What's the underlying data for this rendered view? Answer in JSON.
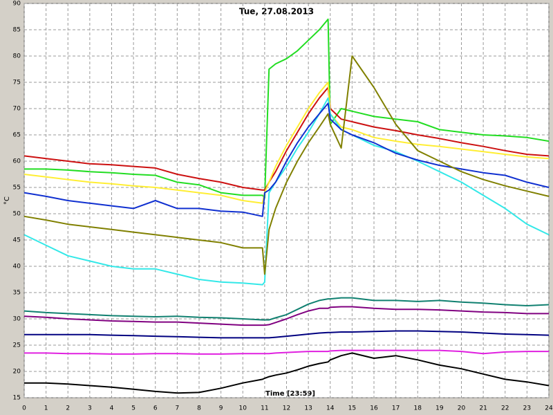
{
  "chart_data": {
    "type": "line",
    "title": "Tue, 27.08.2013",
    "x_label": "Time [23:59]",
    "y_label": "°C",
    "x": [
      0,
      1,
      2,
      3,
      4,
      5,
      6,
      7,
      8,
      9,
      10,
      10.9,
      11,
      11.2,
      11.5,
      12,
      12.5,
      13,
      13.5,
      13.9,
      14,
      14.5,
      15,
      16,
      17,
      18,
      19,
      20,
      21,
      22,
      23,
      24
    ],
    "series": [
      {
        "color": "#22dd22",
        "values": [
          58.5,
          58.5,
          58.3,
          58,
          57.8,
          57.5,
          57.3,
          56,
          55.5,
          54,
          53.5,
          53.5,
          53,
          77.5,
          78.5,
          79.5,
          81,
          83,
          85,
          87,
          67,
          70,
          69.5,
          68.5,
          68,
          67.5,
          66,
          65.5,
          65,
          64.8,
          64.5,
          63.8
        ]
      },
      {
        "color": "#cc1010",
        "values": [
          61,
          60.5,
          60,
          59.5,
          59.3,
          59,
          58.7,
          57.5,
          56.7,
          56,
          55,
          54.5,
          54.5,
          56,
          58,
          62,
          65.5,
          69,
          72,
          74,
          70,
          68,
          67.5,
          66.5,
          65.8,
          65,
          64.3,
          63.5,
          62.8,
          62,
          61.3,
          61
        ]
      },
      {
        "color": "#ffee33",
        "values": [
          57.5,
          57,
          56.5,
          56,
          55.7,
          55.3,
          55,
          54.5,
          54,
          53.5,
          52.5,
          52,
          54,
          56,
          59,
          63,
          66.5,
          70,
          73,
          75,
          69,
          66.5,
          66,
          64.5,
          63.8,
          63.2,
          62.8,
          62.3,
          61.8,
          61.3,
          60.8,
          60.5
        ]
      },
      {
        "color": "#33e8e8",
        "values": [
          46,
          44,
          42,
          41,
          40,
          39.5,
          39.5,
          38.5,
          37.5,
          37,
          36.8,
          36.5,
          37,
          54,
          56,
          59,
          62.5,
          65.5,
          69,
          72,
          69,
          66,
          65,
          63,
          61.8,
          60,
          58,
          56,
          53.5,
          51,
          48,
          46
        ]
      },
      {
        "color": "#1030d0",
        "values": [
          54,
          53.3,
          52.5,
          52,
          51.5,
          51,
          52.5,
          51,
          51,
          50.5,
          50.3,
          49.5,
          54,
          54.5,
          56,
          60,
          63.5,
          66.5,
          69,
          71,
          68,
          66,
          65,
          63.5,
          61.5,
          60.2,
          59.2,
          58.5,
          57.8,
          57.3,
          56,
          55
        ]
      },
      {
        "color": "#808000",
        "values": [
          49.5,
          48.8,
          48,
          47.5,
          47,
          46.5,
          46,
          45.5,
          45,
          44.5,
          43.5,
          43.5,
          38.5,
          47,
          51,
          56,
          60,
          63.5,
          66.5,
          69,
          67,
          62.5,
          80,
          74,
          67,
          62,
          60,
          58,
          56.5,
          55.3,
          54.3,
          53.3
        ]
      },
      {
        "color": "#108070",
        "values": [
          31.5,
          31.2,
          31,
          30.8,
          30.6,
          30.5,
          30.4,
          30.5,
          30.3,
          30.2,
          30,
          29.8,
          29.8,
          29.8,
          30.2,
          30.8,
          31.8,
          32.8,
          33.5,
          33.8,
          33.8,
          34,
          34,
          33.5,
          33.5,
          33.3,
          33.5,
          33.2,
          33,
          32.7,
          32.5,
          32.7
        ]
      },
      {
        "color": "#800080",
        "values": [
          30.5,
          30.3,
          30,
          29.8,
          29.6,
          29.5,
          29.4,
          29.4,
          29.2,
          29,
          28.8,
          28.8,
          28.8,
          28.9,
          29.3,
          30,
          30.8,
          31.5,
          32,
          32,
          32.2,
          32.3,
          32.3,
          32,
          31.8,
          31.8,
          31.7,
          31.5,
          31.3,
          31.2,
          31,
          31
        ]
      },
      {
        "color": "#000080",
        "values": [
          27,
          27,
          27,
          27,
          26.9,
          26.8,
          26.7,
          26.6,
          26.5,
          26.4,
          26.4,
          26.4,
          26.4,
          26.4,
          26.5,
          26.7,
          26.9,
          27.1,
          27.3,
          27.4,
          27.4,
          27.5,
          27.5,
          27.6,
          27.7,
          27.7,
          27.6,
          27.5,
          27.3,
          27.1,
          27,
          26.9
        ]
      },
      {
        "color": "#e020e0",
        "values": [
          23.5,
          23.5,
          23.4,
          23.4,
          23.3,
          23.3,
          23.4,
          23.4,
          23.3,
          23.3,
          23.4,
          23.4,
          23.4,
          23.4,
          23.5,
          23.6,
          23.7,
          23.8,
          23.8,
          23.8,
          23.9,
          24,
          24,
          24,
          24,
          24,
          24,
          23.8,
          23.4,
          23.7,
          23.8,
          23.8
        ]
      },
      {
        "color": "#000000",
        "values": [
          17.8,
          17.8,
          17.6,
          17.3,
          17,
          16.6,
          16.2,
          15.9,
          16,
          16.8,
          17.8,
          18.5,
          18.7,
          19,
          19.3,
          19.7,
          20.3,
          21,
          21.5,
          21.8,
          22.2,
          23,
          23.5,
          22.5,
          23,
          22.2,
          21.2,
          20.5,
          19.5,
          18.5,
          18,
          17.3
        ]
      }
    ],
    "xlim": [
      0,
      24
    ],
    "xticks": [
      0,
      1,
      2,
      3,
      4,
      5,
      6,
      7,
      8,
      9,
      10,
      11,
      12,
      13,
      14,
      15,
      16,
      17,
      18,
      19,
      20,
      21,
      22,
      23,
      24
    ],
    "ylim": [
      15,
      90
    ],
    "yticks": [
      15,
      20,
      25,
      30,
      35,
      40,
      45,
      50,
      55,
      60,
      65,
      70,
      75,
      80,
      85,
      90
    ],
    "grid": true,
    "title_color": "#8b1010"
  }
}
